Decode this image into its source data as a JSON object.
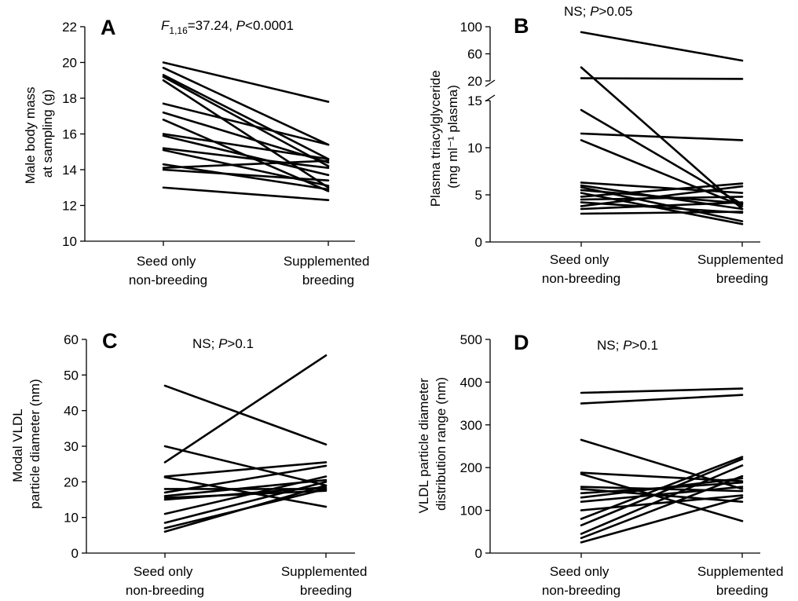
{
  "chart_data": [
    {
      "panel": "A",
      "type": "line",
      "stat": {
        "f_label": "F",
        "f_sub": "1,16",
        "f_value": "=37.24, ",
        "p_label": "P",
        "p_value": "<0.0001"
      },
      "ylabel": [
        "Male body mass",
        "at sampling (g)"
      ],
      "categories": [
        [
          "Seed only",
          "non-breeding"
        ],
        [
          "Supplemented",
          "breeding"
        ]
      ],
      "ylim": [
        10,
        22
      ],
      "yticks": [
        10,
        12,
        14,
        16,
        18,
        20,
        22
      ],
      "pairs": [
        [
          20.0,
          17.8
        ],
        [
          19.7,
          15.4
        ],
        [
          19.3,
          14.6
        ],
        [
          19.2,
          14.2
        ],
        [
          19.0,
          13.0
        ],
        [
          17.7,
          15.4
        ],
        [
          17.2,
          14.4
        ],
        [
          16.8,
          12.8
        ],
        [
          16.0,
          14.6
        ],
        [
          15.9,
          13.7
        ],
        [
          15.2,
          14.1
        ],
        [
          15.1,
          13.1
        ],
        [
          14.3,
          12.9
        ],
        [
          14.1,
          14.5
        ],
        [
          14.0,
          13.4
        ],
        [
          13.0,
          12.3
        ]
      ]
    },
    {
      "panel": "B",
      "type": "line",
      "stat": {
        "ns": "NS; ",
        "p_label": "P",
        "p_value": ">0.05"
      },
      "ylabel": [
        "Plasma triacylglyceride",
        "(mg ml⁻¹ plasma)"
      ],
      "categories": [
        [
          "Seed only",
          "non-breeding"
        ],
        [
          "Supplemented",
          "breeding"
        ]
      ],
      "broken_axis": true,
      "ylim_lower": [
        0,
        15
      ],
      "yticks_lower": [
        0,
        5,
        10,
        15
      ],
      "ylim_upper": [
        20,
        100
      ],
      "yticks_upper": [
        20,
        60,
        100
      ],
      "pairs": [
        [
          92,
          50
        ],
        [
          40,
          3.5
        ],
        [
          24,
          23
        ],
        [
          14,
          4.0
        ],
        [
          11.5,
          10.8
        ],
        [
          10.8,
          3.8
        ],
        [
          6.3,
          5.2
        ],
        [
          6.0,
          3.5
        ],
        [
          5.8,
          2.2
        ],
        [
          5.5,
          4.1
        ],
        [
          5.2,
          1.9
        ],
        [
          4.8,
          6.2
        ],
        [
          4.5,
          4.8
        ],
        [
          4.2,
          3.1
        ],
        [
          3.8,
          5.9
        ],
        [
          3.5,
          4.2
        ],
        [
          3.0,
          3.2
        ]
      ]
    },
    {
      "panel": "C",
      "type": "line",
      "stat": {
        "ns": "NS; ",
        "p_label": "P",
        "p_value": ">0.1"
      },
      "ylabel": [
        "Modal VLDL",
        "particle diameter (nm)"
      ],
      "categories": [
        [
          "Seed only",
          "non-breeding"
        ],
        [
          "Supplemented",
          "breeding"
        ]
      ],
      "ylim": [
        0,
        60
      ],
      "yticks": [
        0,
        10,
        20,
        30,
        40,
        50,
        60
      ],
      "pairs": [
        [
          47,
          30.5
        ],
        [
          30,
          19
        ],
        [
          25.5,
          55.5
        ],
        [
          21.5,
          25.5
        ],
        [
          21.3,
          13
        ],
        [
          18,
          18
        ],
        [
          17,
          24.5
        ],
        [
          16,
          20.5
        ],
        [
          15,
          18.5
        ],
        [
          15.5,
          17.5
        ],
        [
          11,
          21.5
        ],
        [
          8.5,
          20
        ],
        [
          7,
          18
        ],
        [
          6,
          19
        ]
      ]
    },
    {
      "panel": "D",
      "type": "line",
      "stat": {
        "ns": "NS; ",
        "p_label": "P",
        "p_value": ">0.1"
      },
      "ylabel": [
        "VLDL particle diameter",
        "distribution range (nm)"
      ],
      "categories": [
        [
          "Seed only",
          "non-breeding"
        ],
        [
          "Supplemented",
          "breeding"
        ]
      ],
      "ylim": [
        0,
        500
      ],
      "yticks": [
        0,
        100,
        200,
        300,
        400,
        500
      ],
      "pairs": [
        [
          375,
          385
        ],
        [
          350,
          370
        ],
        [
          265,
          150
        ],
        [
          188,
          168
        ],
        [
          185,
          75
        ],
        [
          155,
          145
        ],
        [
          150,
          120
        ],
        [
          140,
          165
        ],
        [
          130,
          175
        ],
        [
          120,
          155
        ],
        [
          100,
          135
        ],
        [
          80,
          225
        ],
        [
          65,
          220
        ],
        [
          45,
          205
        ],
        [
          35,
          180
        ],
        [
          25,
          130
        ]
      ]
    }
  ]
}
